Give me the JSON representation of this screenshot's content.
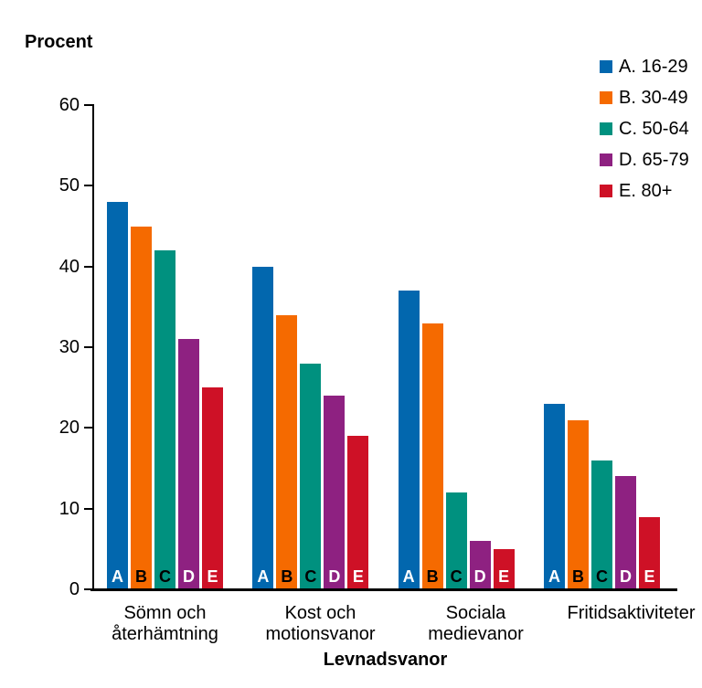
{
  "page": {
    "background": "#ffffff"
  },
  "chart_data": {
    "type": "bar",
    "y_axis_title": "Procent",
    "xlabel": "Levnadsvanor",
    "ylim": [
      0,
      60
    ],
    "yticks": [
      0,
      10,
      20,
      30,
      40,
      50,
      60
    ],
    "grid": false,
    "legend_position": "top-right",
    "axis_color": "#000000",
    "categories": [
      {
        "label_lines": [
          "Sömn och",
          "återhämtning"
        ]
      },
      {
        "label_lines": [
          "Kost och",
          "motionsvanor"
        ]
      },
      {
        "label_lines": [
          "Sociala",
          "medievanor"
        ]
      },
      {
        "label_lines": [
          "Fritidsaktiviteter"
        ]
      }
    ],
    "series": [
      {
        "letter": "A",
        "legend_label": "A. 16-29",
        "color": "#0267AE",
        "letter_color": "#ffffff",
        "values": [
          48,
          40,
          37,
          23
        ]
      },
      {
        "letter": "B",
        "legend_label": "B. 30-49",
        "color": "#F56A00",
        "letter_color": "#000000",
        "values": [
          45,
          34,
          33,
          21
        ]
      },
      {
        "letter": "C",
        "legend_label": "C. 50-64",
        "color": "#00917F",
        "letter_color": "#000000",
        "values": [
          42,
          28,
          12,
          16
        ]
      },
      {
        "letter": "D",
        "legend_label": "D. 65-79",
        "color": "#8E2181",
        "letter_color": "#ffffff",
        "values": [
          31,
          24,
          6,
          14
        ]
      },
      {
        "letter": "E",
        "legend_label": "E. 80+",
        "color": "#CE1126",
        "letter_color": "#ffffff",
        "values": [
          25,
          19,
          5,
          9
        ]
      }
    ]
  }
}
